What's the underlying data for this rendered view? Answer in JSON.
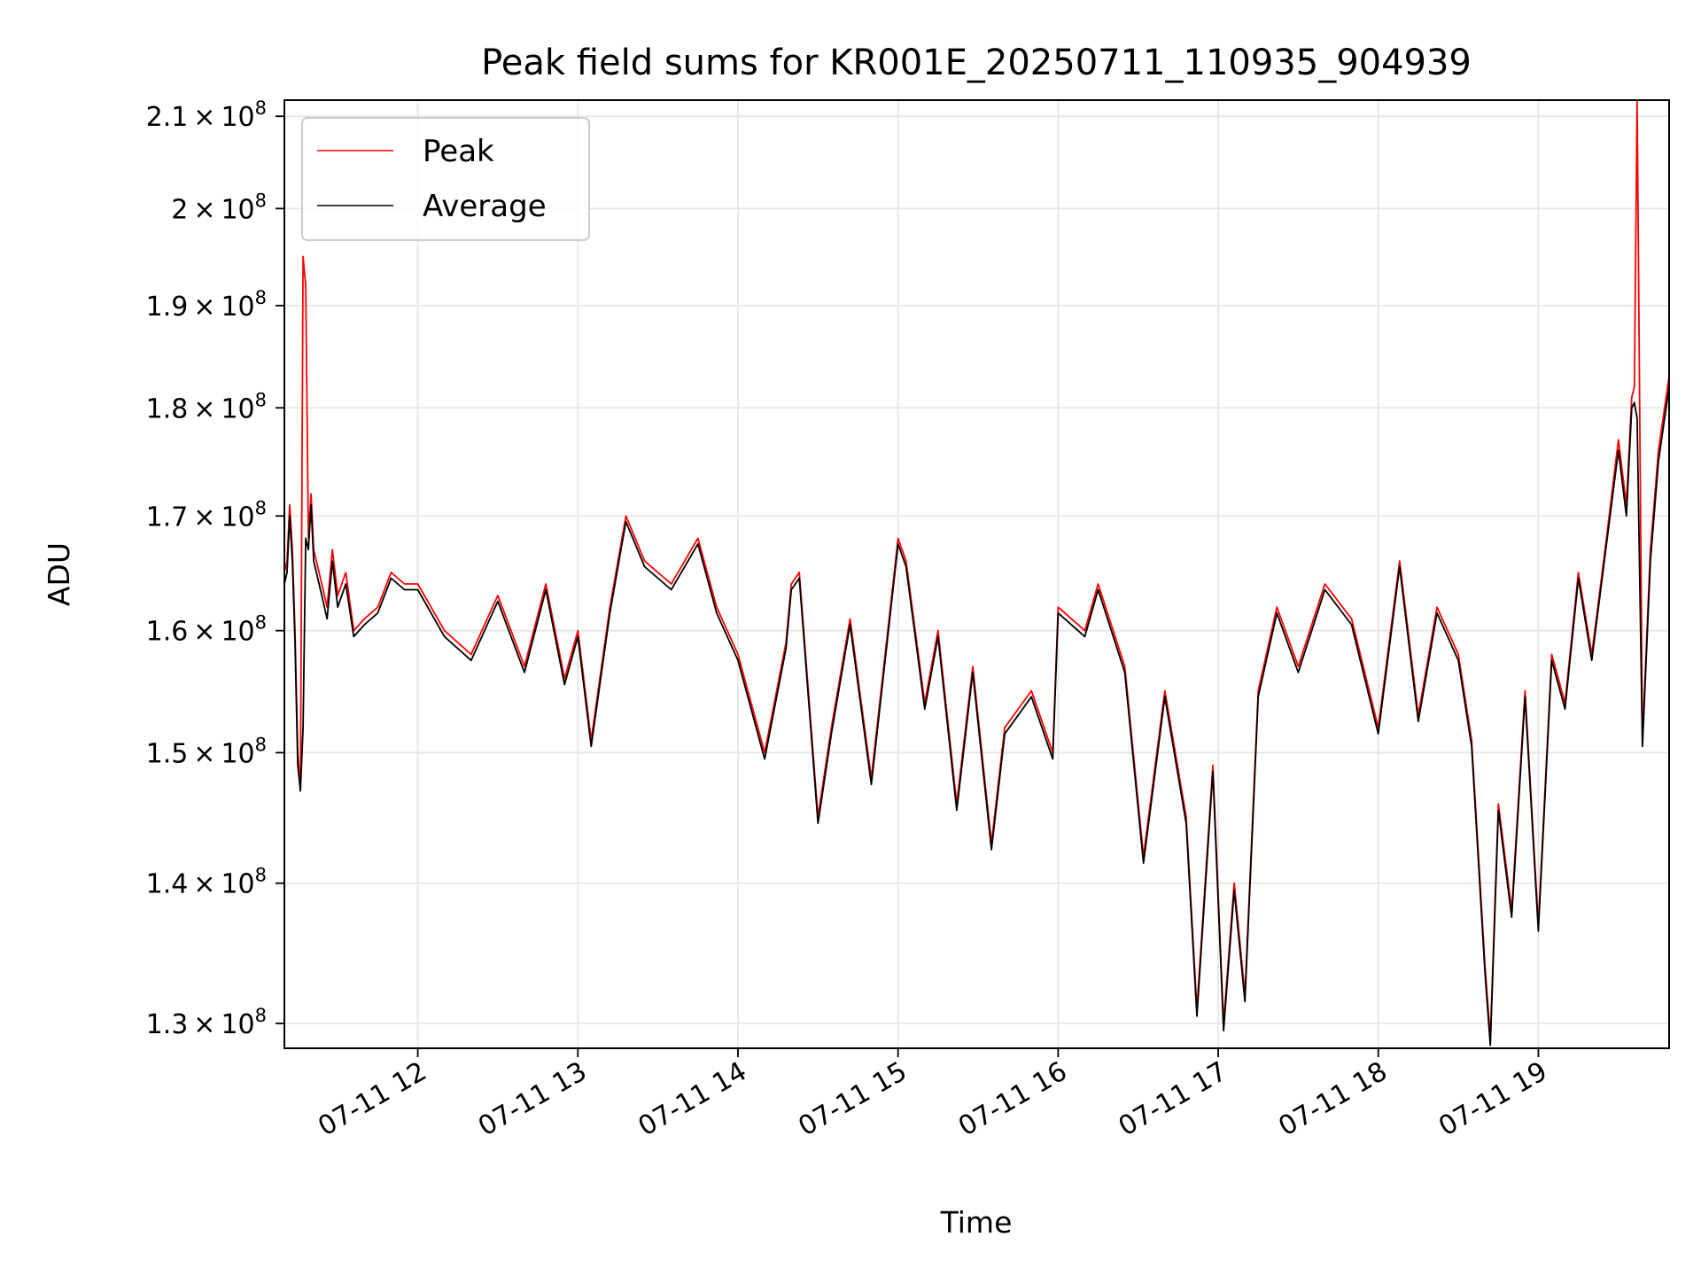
{
  "chart_data": {
    "type": "line",
    "title": "Peak field sums for KR001E_20250711_110935_904939",
    "xlabel": "Time",
    "ylabel": "ADU",
    "yscale": "log",
    "grid": true,
    "legend_position": "top-left",
    "xlim": [
      "2025-07-11 11:10",
      "2025-07-11 19:49"
    ],
    "ylim": [
      128300000,
      211800000
    ],
    "x_ticks": [
      "2025-07-11 12:00",
      "2025-07-11 13:00",
      "2025-07-11 14:00",
      "2025-07-11 15:00",
      "2025-07-11 16:00",
      "2025-07-11 17:00",
      "2025-07-11 18:00",
      "2025-07-11 19:00"
    ],
    "x_tick_labels": [
      "07-11 12",
      "07-11 13",
      "07-11 14",
      "07-11 15",
      "07-11 16",
      "07-11 17",
      "07-11 18",
      "07-11 19"
    ],
    "y_ticks": [
      130000000,
      140000000,
      150000000,
      160000000,
      170000000,
      180000000,
      190000000,
      200000000,
      210000000
    ],
    "y_tick_labels": [
      {
        "mantissa": "1.3",
        "exp": "8"
      },
      {
        "mantissa": "1.4",
        "exp": "8"
      },
      {
        "mantissa": "1.5",
        "exp": "8"
      },
      {
        "mantissa": "1.6",
        "exp": "8"
      },
      {
        "mantissa": "1.7",
        "exp": "8"
      },
      {
        "mantissa": "1.8",
        "exp": "8"
      },
      {
        "mantissa": "1.9",
        "exp": "8"
      },
      {
        "mantissa": "2",
        "exp": "8"
      },
      {
        "mantissa": "2.1",
        "exp": "8"
      }
    ],
    "times_symbol": "×",
    "base": "10",
    "series": [
      {
        "name": "Peak",
        "color": "#ff0000",
        "x": [
          "2025-07-11 11:10",
          "2025-07-11 11:11",
          "2025-07-11 11:12",
          "2025-07-11 11:13",
          "2025-07-11 11:14",
          "2025-07-11 11:15",
          "2025-07-11 11:16",
          "2025-07-11 11:17",
          "2025-07-11 11:18",
          "2025-07-11 11:19",
          "2025-07-11 11:20",
          "2025-07-11 11:21",
          "2025-07-11 11:22",
          "2025-07-11 11:24",
          "2025-07-11 11:26",
          "2025-07-11 11:28",
          "2025-07-11 11:30",
          "2025-07-11 11:33",
          "2025-07-11 11:36",
          "2025-07-11 11:40",
          "2025-07-11 11:45",
          "2025-07-11 11:50",
          "2025-07-11 11:55",
          "2025-07-11 12:00",
          "2025-07-11 12:10",
          "2025-07-11 12:20",
          "2025-07-11 12:30",
          "2025-07-11 12:40",
          "2025-07-11 12:48",
          "2025-07-11 12:55",
          "2025-07-11 13:00",
          "2025-07-11 13:05",
          "2025-07-11 13:12",
          "2025-07-11 13:18",
          "2025-07-11 13:25",
          "2025-07-11 13:35",
          "2025-07-11 13:45",
          "2025-07-11 13:52",
          "2025-07-11 14:00",
          "2025-07-11 14:10",
          "2025-07-11 14:18",
          "2025-07-11 14:20",
          "2025-07-11 14:23",
          "2025-07-11 14:30",
          "2025-07-11 14:35",
          "2025-07-11 14:42",
          "2025-07-11 14:50",
          "2025-07-11 15:00",
          "2025-07-11 15:03",
          "2025-07-11 15:10",
          "2025-07-11 15:15",
          "2025-07-11 15:22",
          "2025-07-11 15:28",
          "2025-07-11 15:35",
          "2025-07-11 15:40",
          "2025-07-11 15:50",
          "2025-07-11 15:58",
          "2025-07-11 16:00",
          "2025-07-11 16:10",
          "2025-07-11 16:15",
          "2025-07-11 16:25",
          "2025-07-11 16:32",
          "2025-07-11 16:40",
          "2025-07-11 16:48",
          "2025-07-11 16:52",
          "2025-07-11 16:58",
          "2025-07-11 17:02",
          "2025-07-11 17:06",
          "2025-07-11 17:10",
          "2025-07-11 17:15",
          "2025-07-11 17:22",
          "2025-07-11 17:30",
          "2025-07-11 17:40",
          "2025-07-11 17:50",
          "2025-07-11 18:00",
          "2025-07-11 18:08",
          "2025-07-11 18:15",
          "2025-07-11 18:22",
          "2025-07-11 18:30",
          "2025-07-11 18:35",
          "2025-07-11 18:40",
          "2025-07-11 18:42",
          "2025-07-11 18:45",
          "2025-07-11 18:50",
          "2025-07-11 18:55",
          "2025-07-11 19:00",
          "2025-07-11 19:05",
          "2025-07-11 19:10",
          "2025-07-11 19:15",
          "2025-07-11 19:20",
          "2025-07-11 19:25",
          "2025-07-11 19:30",
          "2025-07-11 19:33",
          "2025-07-11 19:35",
          "2025-07-11 19:36",
          "2025-07-11 19:37",
          "2025-07-11 19:39",
          "2025-07-11 19:42",
          "2025-07-11 19:45",
          "2025-07-11 19:49"
        ],
        "values": [
          165000000,
          166000000,
          171000000,
          167000000,
          160000000,
          150000000,
          147000000,
          195000000,
          192000000,
          168000000,
          172000000,
          167000000,
          166000000,
          164000000,
          162000000,
          167000000,
          163000000,
          165000000,
          160000000,
          161000000,
          162000000,
          165000000,
          164000000,
          164000000,
          160000000,
          158000000,
          163000000,
          157000000,
          164000000,
          156000000,
          160000000,
          151000000,
          162000000,
          170000000,
          166000000,
          164000000,
          168000000,
          162000000,
          158000000,
          150000000,
          159000000,
          164000000,
          165000000,
          145000000,
          152000000,
          161000000,
          148000000,
          168000000,
          166000000,
          154000000,
          160000000,
          146000000,
          157000000,
          143000000,
          152000000,
          155000000,
          150000000,
          162000000,
          160000000,
          164000000,
          157000000,
          142000000,
          155000000,
          145000000,
          131000000,
          149000000,
          130000000,
          140000000,
          132000000,
          155000000,
          162000000,
          157000000,
          164000000,
          161000000,
          152000000,
          166000000,
          153000000,
          162000000,
          158000000,
          151000000,
          134000000,
          129000000,
          146000000,
          138000000,
          155000000,
          137000000,
          158000000,
          154000000,
          165000000,
          158000000,
          167000000,
          177000000,
          171000000,
          181000000,
          182000000,
          211800000,
          151000000,
          167000000,
          176000000,
          183000000
        ]
      },
      {
        "name": "Average",
        "color": "#000000",
        "x": [
          "2025-07-11 11:10",
          "2025-07-11 11:11",
          "2025-07-11 11:12",
          "2025-07-11 11:13",
          "2025-07-11 11:14",
          "2025-07-11 11:15",
          "2025-07-11 11:16",
          "2025-07-11 11:17",
          "2025-07-11 11:18",
          "2025-07-11 11:19",
          "2025-07-11 11:20",
          "2025-07-11 11:21",
          "2025-07-11 11:22",
          "2025-07-11 11:24",
          "2025-07-11 11:26",
          "2025-07-11 11:28",
          "2025-07-11 11:30",
          "2025-07-11 11:33",
          "2025-07-11 11:36",
          "2025-07-11 11:40",
          "2025-07-11 11:45",
          "2025-07-11 11:50",
          "2025-07-11 11:55",
          "2025-07-11 12:00",
          "2025-07-11 12:10",
          "2025-07-11 12:20",
          "2025-07-11 12:30",
          "2025-07-11 12:40",
          "2025-07-11 12:48",
          "2025-07-11 12:55",
          "2025-07-11 13:00",
          "2025-07-11 13:05",
          "2025-07-11 13:12",
          "2025-07-11 13:18",
          "2025-07-11 13:25",
          "2025-07-11 13:35",
          "2025-07-11 13:45",
          "2025-07-11 13:52",
          "2025-07-11 14:00",
          "2025-07-11 14:10",
          "2025-07-11 14:18",
          "2025-07-11 14:20",
          "2025-07-11 14:23",
          "2025-07-11 14:30",
          "2025-07-11 14:35",
          "2025-07-11 14:42",
          "2025-07-11 14:50",
          "2025-07-11 15:00",
          "2025-07-11 15:03",
          "2025-07-11 15:10",
          "2025-07-11 15:15",
          "2025-07-11 15:22",
          "2025-07-11 15:28",
          "2025-07-11 15:35",
          "2025-07-11 15:40",
          "2025-07-11 15:50",
          "2025-07-11 15:58",
          "2025-07-11 16:00",
          "2025-07-11 16:10",
          "2025-07-11 16:15",
          "2025-07-11 16:25",
          "2025-07-11 16:32",
          "2025-07-11 16:40",
          "2025-07-11 16:48",
          "2025-07-11 16:52",
          "2025-07-11 16:58",
          "2025-07-11 17:02",
          "2025-07-11 17:06",
          "2025-07-11 17:10",
          "2025-07-11 17:15",
          "2025-07-11 17:22",
          "2025-07-11 17:30",
          "2025-07-11 17:40",
          "2025-07-11 17:50",
          "2025-07-11 18:00",
          "2025-07-11 18:08",
          "2025-07-11 18:15",
          "2025-07-11 18:22",
          "2025-07-11 18:30",
          "2025-07-11 18:35",
          "2025-07-11 18:40",
          "2025-07-11 18:42",
          "2025-07-11 18:45",
          "2025-07-11 18:50",
          "2025-07-11 18:55",
          "2025-07-11 19:00",
          "2025-07-11 19:05",
          "2025-07-11 19:10",
          "2025-07-11 19:15",
          "2025-07-11 19:20",
          "2025-07-11 19:25",
          "2025-07-11 19:30",
          "2025-07-11 19:33",
          "2025-07-11 19:35",
          "2025-07-11 19:36",
          "2025-07-11 19:37",
          "2025-07-11 19:39",
          "2025-07-11 19:42",
          "2025-07-11 19:45",
          "2025-07-11 19:49"
        ],
        "values": [
          164000000,
          165000000,
          170000000,
          166000000,
          159000000,
          149000000,
          147000000,
          152000000,
          168000000,
          167000000,
          171000000,
          166000000,
          165000000,
          163000000,
          161000000,
          166000000,
          162000000,
          164000000,
          159500000,
          160500000,
          161500000,
          164500000,
          163500000,
          163500000,
          159500000,
          157500000,
          162500000,
          156500000,
          163500000,
          155500000,
          159500000,
          150500000,
          161500000,
          169500000,
          165500000,
          163500000,
          167500000,
          161500000,
          157500000,
          149500000,
          158500000,
          163500000,
          164500000,
          144500000,
          151500000,
          160500000,
          147500000,
          167500000,
          165500000,
          153500000,
          159500000,
          145500000,
          156500000,
          142500000,
          151500000,
          154500000,
          149500000,
          161500000,
          159500000,
          163500000,
          156500000,
          141500000,
          154500000,
          144500000,
          130500000,
          148500000,
          129500000,
          139500000,
          131500000,
          154500000,
          161500000,
          156500000,
          163500000,
          160500000,
          151500000,
          165500000,
          152500000,
          161500000,
          157500000,
          150500000,
          133500000,
          128500000,
          145500000,
          137500000,
          154500000,
          136500000,
          157500000,
          153500000,
          164500000,
          157500000,
          166500000,
          176000000,
          170000000,
          180000000,
          180500000,
          179000000,
          150500000,
          166000000,
          175000000,
          182000000
        ]
      }
    ]
  }
}
